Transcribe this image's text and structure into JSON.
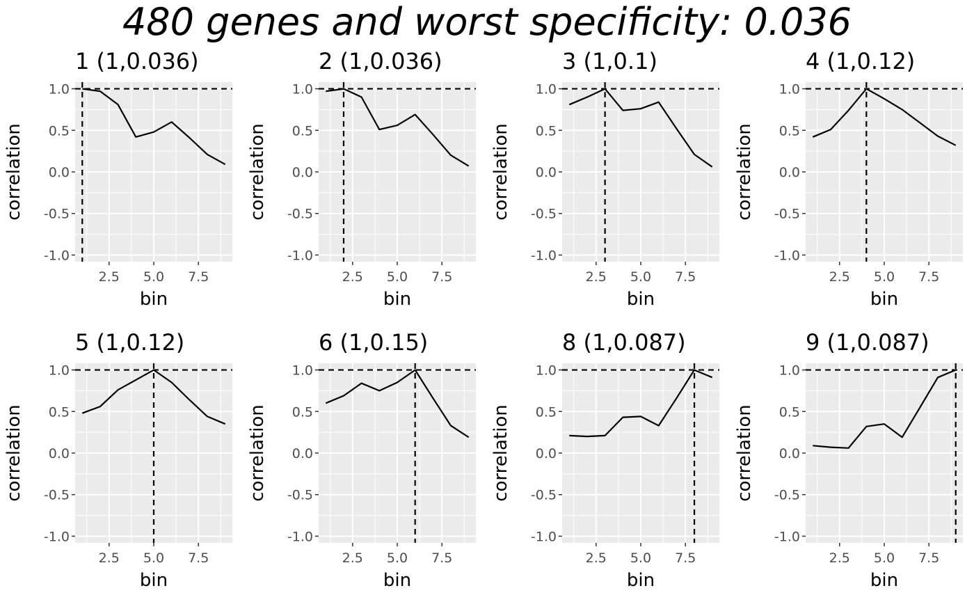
{
  "chart_data": {
    "type": "line",
    "title": "480 genes and worst specificity: 0.036",
    "xlabel": "bin",
    "ylabel": "correlation",
    "xlim": [
      0.6,
      9.4
    ],
    "ylim": [
      -1.08,
      1.08
    ],
    "x_ticks": [
      2.5,
      5.0,
      7.5
    ],
    "x_tick_labels": [
      "2.5",
      "5.0",
      "7.5"
    ],
    "y_ticks": [
      -1.0,
      -0.5,
      0.0,
      0.5,
      1.0
    ],
    "y_tick_labels": [
      "-1.0",
      "-0.5",
      "0.0",
      "0.5",
      "1.0"
    ],
    "grid": true,
    "panel_background": "#ebebeb",
    "line_color": "#000000",
    "reference_line_style": "dashed",
    "x": [
      1,
      2,
      3,
      4,
      5,
      6,
      7,
      8,
      9
    ],
    "panels": [
      {
        "title": "1 (1,0.036)",
        "vline": 1,
        "hline": 1.0,
        "values": [
          1.0,
          0.97,
          0.81,
          0.42,
          0.48,
          0.6,
          0.41,
          0.21,
          0.09
        ]
      },
      {
        "title": "2 (1,0.036)",
        "vline": 2,
        "hline": 1.0,
        "values": [
          0.97,
          1.0,
          0.9,
          0.51,
          0.56,
          0.69,
          0.45,
          0.2,
          0.07
        ]
      },
      {
        "title": "3 (1,0.1)",
        "vline": 3,
        "hline": 1.0,
        "values": [
          0.81,
          0.9,
          1.0,
          0.74,
          0.76,
          0.84,
          0.52,
          0.21,
          0.06
        ]
      },
      {
        "title": "4 (1,0.12)",
        "vline": 4,
        "hline": 1.0,
        "values": [
          0.42,
          0.51,
          0.74,
          1.0,
          0.88,
          0.75,
          0.59,
          0.43,
          0.32
        ]
      },
      {
        "title": "5 (1,0.12)",
        "vline": 5,
        "hline": 1.0,
        "values": [
          0.48,
          0.56,
          0.76,
          0.88,
          1.0,
          0.85,
          0.64,
          0.44,
          0.35
        ]
      },
      {
        "title": "6 (1,0.15)",
        "vline": 6,
        "hline": 1.0,
        "values": [
          0.6,
          0.69,
          0.84,
          0.75,
          0.85,
          1.0,
          0.66,
          0.33,
          0.19
        ]
      },
      {
        "title": "8 (1,0.087)",
        "vline": 8,
        "hline": 1.0,
        "values": [
          0.21,
          0.2,
          0.21,
          0.43,
          0.44,
          0.33,
          0.66,
          1.0,
          0.91
        ]
      },
      {
        "title": "9 (1,0.087)",
        "vline": 9,
        "hline": 1.0,
        "values": [
          0.09,
          0.07,
          0.06,
          0.32,
          0.35,
          0.19,
          0.55,
          0.91,
          1.0
        ]
      }
    ]
  }
}
